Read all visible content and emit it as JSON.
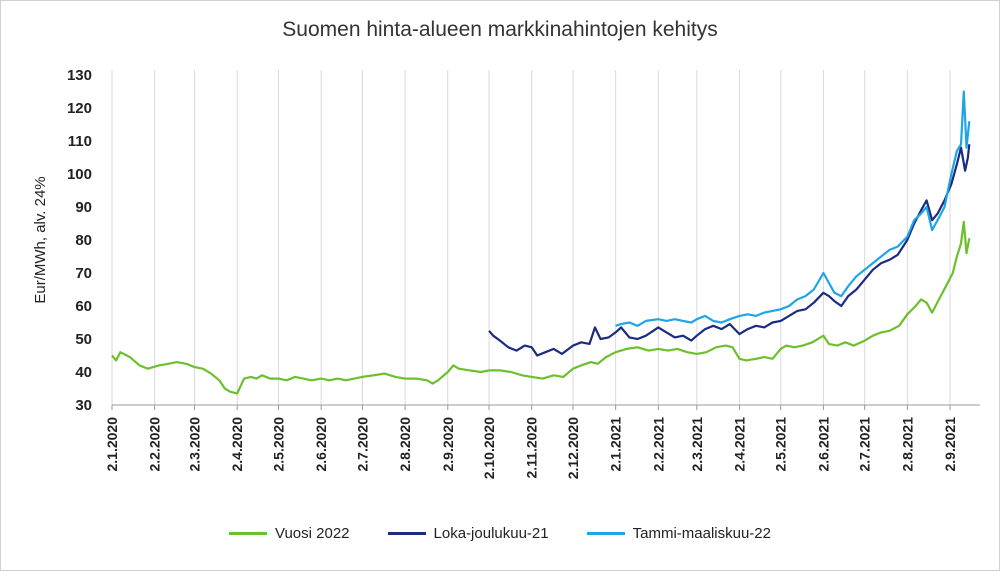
{
  "chart_data": {
    "type": "line",
    "title": "Suomen hinta-alueen markkinahintojen kehitys",
    "ylabel": "Eur/MWh, alv. 24%",
    "xlabel": "",
    "ylim": [
      30,
      130
    ],
    "yticks": [
      30,
      40,
      50,
      60,
      70,
      80,
      90,
      100,
      110,
      120,
      130
    ],
    "x_axis": {
      "start": "2020-01-02",
      "end": "2021-09-16",
      "tick_dates": [
        "2020-01-02",
        "2020-02-02",
        "2020-03-02",
        "2020-04-02",
        "2020-05-02",
        "2020-06-02",
        "2020-07-02",
        "2020-08-02",
        "2020-09-02",
        "2020-10-02",
        "2020-11-02",
        "2020-12-02",
        "2021-01-02",
        "2021-02-02",
        "2021-03-02",
        "2021-04-02",
        "2021-05-02",
        "2021-06-02",
        "2021-07-02",
        "2021-08-02",
        "2021-09-02"
      ],
      "tick_labels": [
        "2.1.2020",
        "2.2.2020",
        "2.3.2020",
        "2.4.2020",
        "2.5.2020",
        "2.6.2020",
        "2.7.2020",
        "2.8.2020",
        "2.9.2020",
        "2.10.2020",
        "2.11.2020",
        "2.12.2020",
        "2.1.2021",
        "2.2.2021",
        "2.3.2021",
        "2.4.2021",
        "2.5.2021",
        "2.6.2021",
        "2.7.2021",
        "2.8.2021",
        "2.9.2021"
      ]
    },
    "grid": "vertical",
    "legend_position": "bottom",
    "series": [
      {
        "name": "Vuosi 2022",
        "color": "#6cbf2d",
        "points": [
          [
            "2020-01-02",
            45
          ],
          [
            "2020-01-05",
            43.5
          ],
          [
            "2020-01-08",
            46
          ],
          [
            "2020-01-15",
            44.5
          ],
          [
            "2020-01-22",
            42
          ],
          [
            "2020-01-28",
            41
          ],
          [
            "2020-02-05",
            42
          ],
          [
            "2020-02-12",
            42.5
          ],
          [
            "2020-02-18",
            43
          ],
          [
            "2020-02-25",
            42.5
          ],
          [
            "2020-03-02",
            41.5
          ],
          [
            "2020-03-08",
            41
          ],
          [
            "2020-03-14",
            39.5
          ],
          [
            "2020-03-20",
            37.5
          ],
          [
            "2020-03-24",
            35
          ],
          [
            "2020-03-28",
            34
          ],
          [
            "2020-04-02",
            33.5
          ],
          [
            "2020-04-07",
            38
          ],
          [
            "2020-04-12",
            38.5
          ],
          [
            "2020-04-16",
            38
          ],
          [
            "2020-04-20",
            39
          ],
          [
            "2020-04-26",
            38
          ],
          [
            "2020-05-02",
            38
          ],
          [
            "2020-05-08",
            37.5
          ],
          [
            "2020-05-14",
            38.5
          ],
          [
            "2020-05-20",
            38
          ],
          [
            "2020-05-26",
            37.5
          ],
          [
            "2020-06-02",
            38
          ],
          [
            "2020-06-08",
            37.5
          ],
          [
            "2020-06-14",
            38
          ],
          [
            "2020-06-20",
            37.5
          ],
          [
            "2020-06-26",
            38
          ],
          [
            "2020-07-02",
            38.5
          ],
          [
            "2020-07-10",
            39
          ],
          [
            "2020-07-18",
            39.5
          ],
          [
            "2020-07-26",
            38.5
          ],
          [
            "2020-08-02",
            38
          ],
          [
            "2020-08-10",
            38
          ],
          [
            "2020-08-18",
            37.5
          ],
          [
            "2020-08-22",
            36.5
          ],
          [
            "2020-08-26",
            37.5
          ],
          [
            "2020-09-02",
            40
          ],
          [
            "2020-09-06",
            42
          ],
          [
            "2020-09-10",
            41
          ],
          [
            "2020-09-18",
            40.5
          ],
          [
            "2020-09-26",
            40
          ],
          [
            "2020-10-02",
            40.5
          ],
          [
            "2020-10-10",
            40.5
          ],
          [
            "2020-10-18",
            40
          ],
          [
            "2020-10-26",
            39
          ],
          [
            "2020-11-02",
            38.5
          ],
          [
            "2020-11-10",
            38
          ],
          [
            "2020-11-18",
            39
          ],
          [
            "2020-11-25",
            38.5
          ],
          [
            "2020-12-02",
            41
          ],
          [
            "2020-12-08",
            42
          ],
          [
            "2020-12-15",
            43
          ],
          [
            "2020-12-20",
            42.5
          ],
          [
            "2020-12-26",
            44.5
          ],
          [
            "2021-01-02",
            46
          ],
          [
            "2021-01-10",
            47
          ],
          [
            "2021-01-18",
            47.5
          ],
          [
            "2021-01-26",
            46.5
          ],
          [
            "2021-02-02",
            47
          ],
          [
            "2021-02-09",
            46.5
          ],
          [
            "2021-02-16",
            47
          ],
          [
            "2021-02-23",
            46
          ],
          [
            "2021-03-02",
            45.5
          ],
          [
            "2021-03-09",
            46
          ],
          [
            "2021-03-16",
            47.5
          ],
          [
            "2021-03-23",
            48
          ],
          [
            "2021-03-28",
            47.5
          ],
          [
            "2021-04-02",
            44
          ],
          [
            "2021-04-07",
            43.5
          ],
          [
            "2021-04-14",
            44
          ],
          [
            "2021-04-20",
            44.5
          ],
          [
            "2021-04-26",
            44
          ],
          [
            "2021-05-02",
            47
          ],
          [
            "2021-05-06",
            48
          ],
          [
            "2021-05-12",
            47.5
          ],
          [
            "2021-05-18",
            48
          ],
          [
            "2021-05-25",
            49
          ],
          [
            "2021-06-02",
            51
          ],
          [
            "2021-06-06",
            48.5
          ],
          [
            "2021-06-12",
            48
          ],
          [
            "2021-06-18",
            49
          ],
          [
            "2021-06-24",
            48
          ],
          [
            "2021-07-02",
            49.5
          ],
          [
            "2021-07-08",
            51
          ],
          [
            "2021-07-14",
            52
          ],
          [
            "2021-07-20",
            52.5
          ],
          [
            "2021-07-27",
            54
          ],
          [
            "2021-08-02",
            57.5
          ],
          [
            "2021-08-08",
            60
          ],
          [
            "2021-08-12",
            62
          ],
          [
            "2021-08-16",
            61
          ],
          [
            "2021-08-20",
            58
          ],
          [
            "2021-08-25",
            62
          ],
          [
            "2021-08-30",
            66
          ],
          [
            "2021-09-04",
            70
          ],
          [
            "2021-09-07",
            75
          ],
          [
            "2021-09-10",
            79
          ],
          [
            "2021-09-12",
            85.5
          ],
          [
            "2021-09-14",
            76
          ],
          [
            "2021-09-16",
            80.5
          ]
        ]
      },
      {
        "name": "Loka-joulukuu-21",
        "color": "#1a2b80",
        "points": [
          [
            "2020-10-02",
            52.5
          ],
          [
            "2020-10-05",
            51
          ],
          [
            "2020-10-10",
            49.5
          ],
          [
            "2020-10-16",
            47.5
          ],
          [
            "2020-10-22",
            46.5
          ],
          [
            "2020-10-28",
            48
          ],
          [
            "2020-11-02",
            47.5
          ],
          [
            "2020-11-06",
            45
          ],
          [
            "2020-11-12",
            46
          ],
          [
            "2020-11-18",
            47
          ],
          [
            "2020-11-24",
            45.5
          ],
          [
            "2020-12-02",
            48
          ],
          [
            "2020-12-08",
            49
          ],
          [
            "2020-12-14",
            48.5
          ],
          [
            "2020-12-18",
            53.5
          ],
          [
            "2020-12-22",
            50
          ],
          [
            "2020-12-28",
            50.5
          ],
          [
            "2021-01-02",
            52
          ],
          [
            "2021-01-06",
            53.5
          ],
          [
            "2021-01-12",
            50.5
          ],
          [
            "2021-01-18",
            50
          ],
          [
            "2021-01-24",
            51
          ],
          [
            "2021-02-02",
            53.5
          ],
          [
            "2021-02-08",
            52
          ],
          [
            "2021-02-14",
            50.5
          ],
          [
            "2021-02-20",
            51
          ],
          [
            "2021-02-26",
            49.5
          ],
          [
            "2021-03-02",
            51
          ],
          [
            "2021-03-08",
            53
          ],
          [
            "2021-03-14",
            54
          ],
          [
            "2021-03-20",
            53
          ],
          [
            "2021-03-26",
            54.5
          ],
          [
            "2021-04-02",
            51.5
          ],
          [
            "2021-04-08",
            53
          ],
          [
            "2021-04-14",
            54
          ],
          [
            "2021-04-20",
            53.5
          ],
          [
            "2021-04-26",
            55
          ],
          [
            "2021-05-02",
            55.5
          ],
          [
            "2021-05-08",
            57
          ],
          [
            "2021-05-14",
            58.5
          ],
          [
            "2021-05-20",
            59
          ],
          [
            "2021-05-26",
            61
          ],
          [
            "2021-06-02",
            64
          ],
          [
            "2021-06-06",
            63
          ],
          [
            "2021-06-10",
            61.5
          ],
          [
            "2021-06-15",
            60
          ],
          [
            "2021-06-20",
            63
          ],
          [
            "2021-06-26",
            65
          ],
          [
            "2021-07-02",
            68
          ],
          [
            "2021-07-08",
            71
          ],
          [
            "2021-07-14",
            73
          ],
          [
            "2021-07-20",
            74
          ],
          [
            "2021-07-26",
            75.5
          ],
          [
            "2021-08-02",
            80
          ],
          [
            "2021-08-07",
            85
          ],
          [
            "2021-08-12",
            89
          ],
          [
            "2021-08-16",
            92
          ],
          [
            "2021-08-20",
            86
          ],
          [
            "2021-08-24",
            88
          ],
          [
            "2021-08-29",
            92
          ],
          [
            "2021-09-03",
            97
          ],
          [
            "2021-09-07",
            103
          ],
          [
            "2021-09-10",
            108
          ],
          [
            "2021-09-13",
            101
          ],
          [
            "2021-09-15",
            105
          ],
          [
            "2021-09-16",
            109
          ]
        ]
      },
      {
        "name": "Tammi-maaliskuu-22",
        "color": "#1ea5e6",
        "points": [
          [
            "2021-01-02",
            54
          ],
          [
            "2021-01-06",
            54.5
          ],
          [
            "2021-01-12",
            55
          ],
          [
            "2021-01-18",
            54
          ],
          [
            "2021-01-24",
            55.5
          ],
          [
            "2021-02-02",
            56
          ],
          [
            "2021-02-08",
            55.5
          ],
          [
            "2021-02-14",
            56
          ],
          [
            "2021-02-20",
            55.5
          ],
          [
            "2021-02-26",
            55
          ],
          [
            "2021-03-02",
            56
          ],
          [
            "2021-03-08",
            57
          ],
          [
            "2021-03-14",
            55.5
          ],
          [
            "2021-03-20",
            55
          ],
          [
            "2021-03-26",
            56
          ],
          [
            "2021-04-02",
            57
          ],
          [
            "2021-04-08",
            57.5
          ],
          [
            "2021-04-14",
            57
          ],
          [
            "2021-04-20",
            58
          ],
          [
            "2021-04-26",
            58.5
          ],
          [
            "2021-05-02",
            59
          ],
          [
            "2021-05-08",
            60
          ],
          [
            "2021-05-14",
            62
          ],
          [
            "2021-05-20",
            63
          ],
          [
            "2021-05-26",
            65
          ],
          [
            "2021-06-02",
            70
          ],
          [
            "2021-06-06",
            67
          ],
          [
            "2021-06-10",
            64
          ],
          [
            "2021-06-15",
            63
          ],
          [
            "2021-06-20",
            66
          ],
          [
            "2021-06-26",
            69
          ],
          [
            "2021-07-02",
            71
          ],
          [
            "2021-07-08",
            73
          ],
          [
            "2021-07-14",
            75
          ],
          [
            "2021-07-20",
            77
          ],
          [
            "2021-07-26",
            78
          ],
          [
            "2021-08-02",
            81
          ],
          [
            "2021-08-07",
            86
          ],
          [
            "2021-08-12",
            88
          ],
          [
            "2021-08-16",
            90
          ],
          [
            "2021-08-20",
            83
          ],
          [
            "2021-08-24",
            86
          ],
          [
            "2021-08-29",
            90
          ],
          [
            "2021-09-03",
            100
          ],
          [
            "2021-09-07",
            107
          ],
          [
            "2021-09-10",
            109
          ],
          [
            "2021-09-12",
            125
          ],
          [
            "2021-09-14",
            108
          ],
          [
            "2021-09-16",
            116
          ]
        ]
      }
    ]
  }
}
